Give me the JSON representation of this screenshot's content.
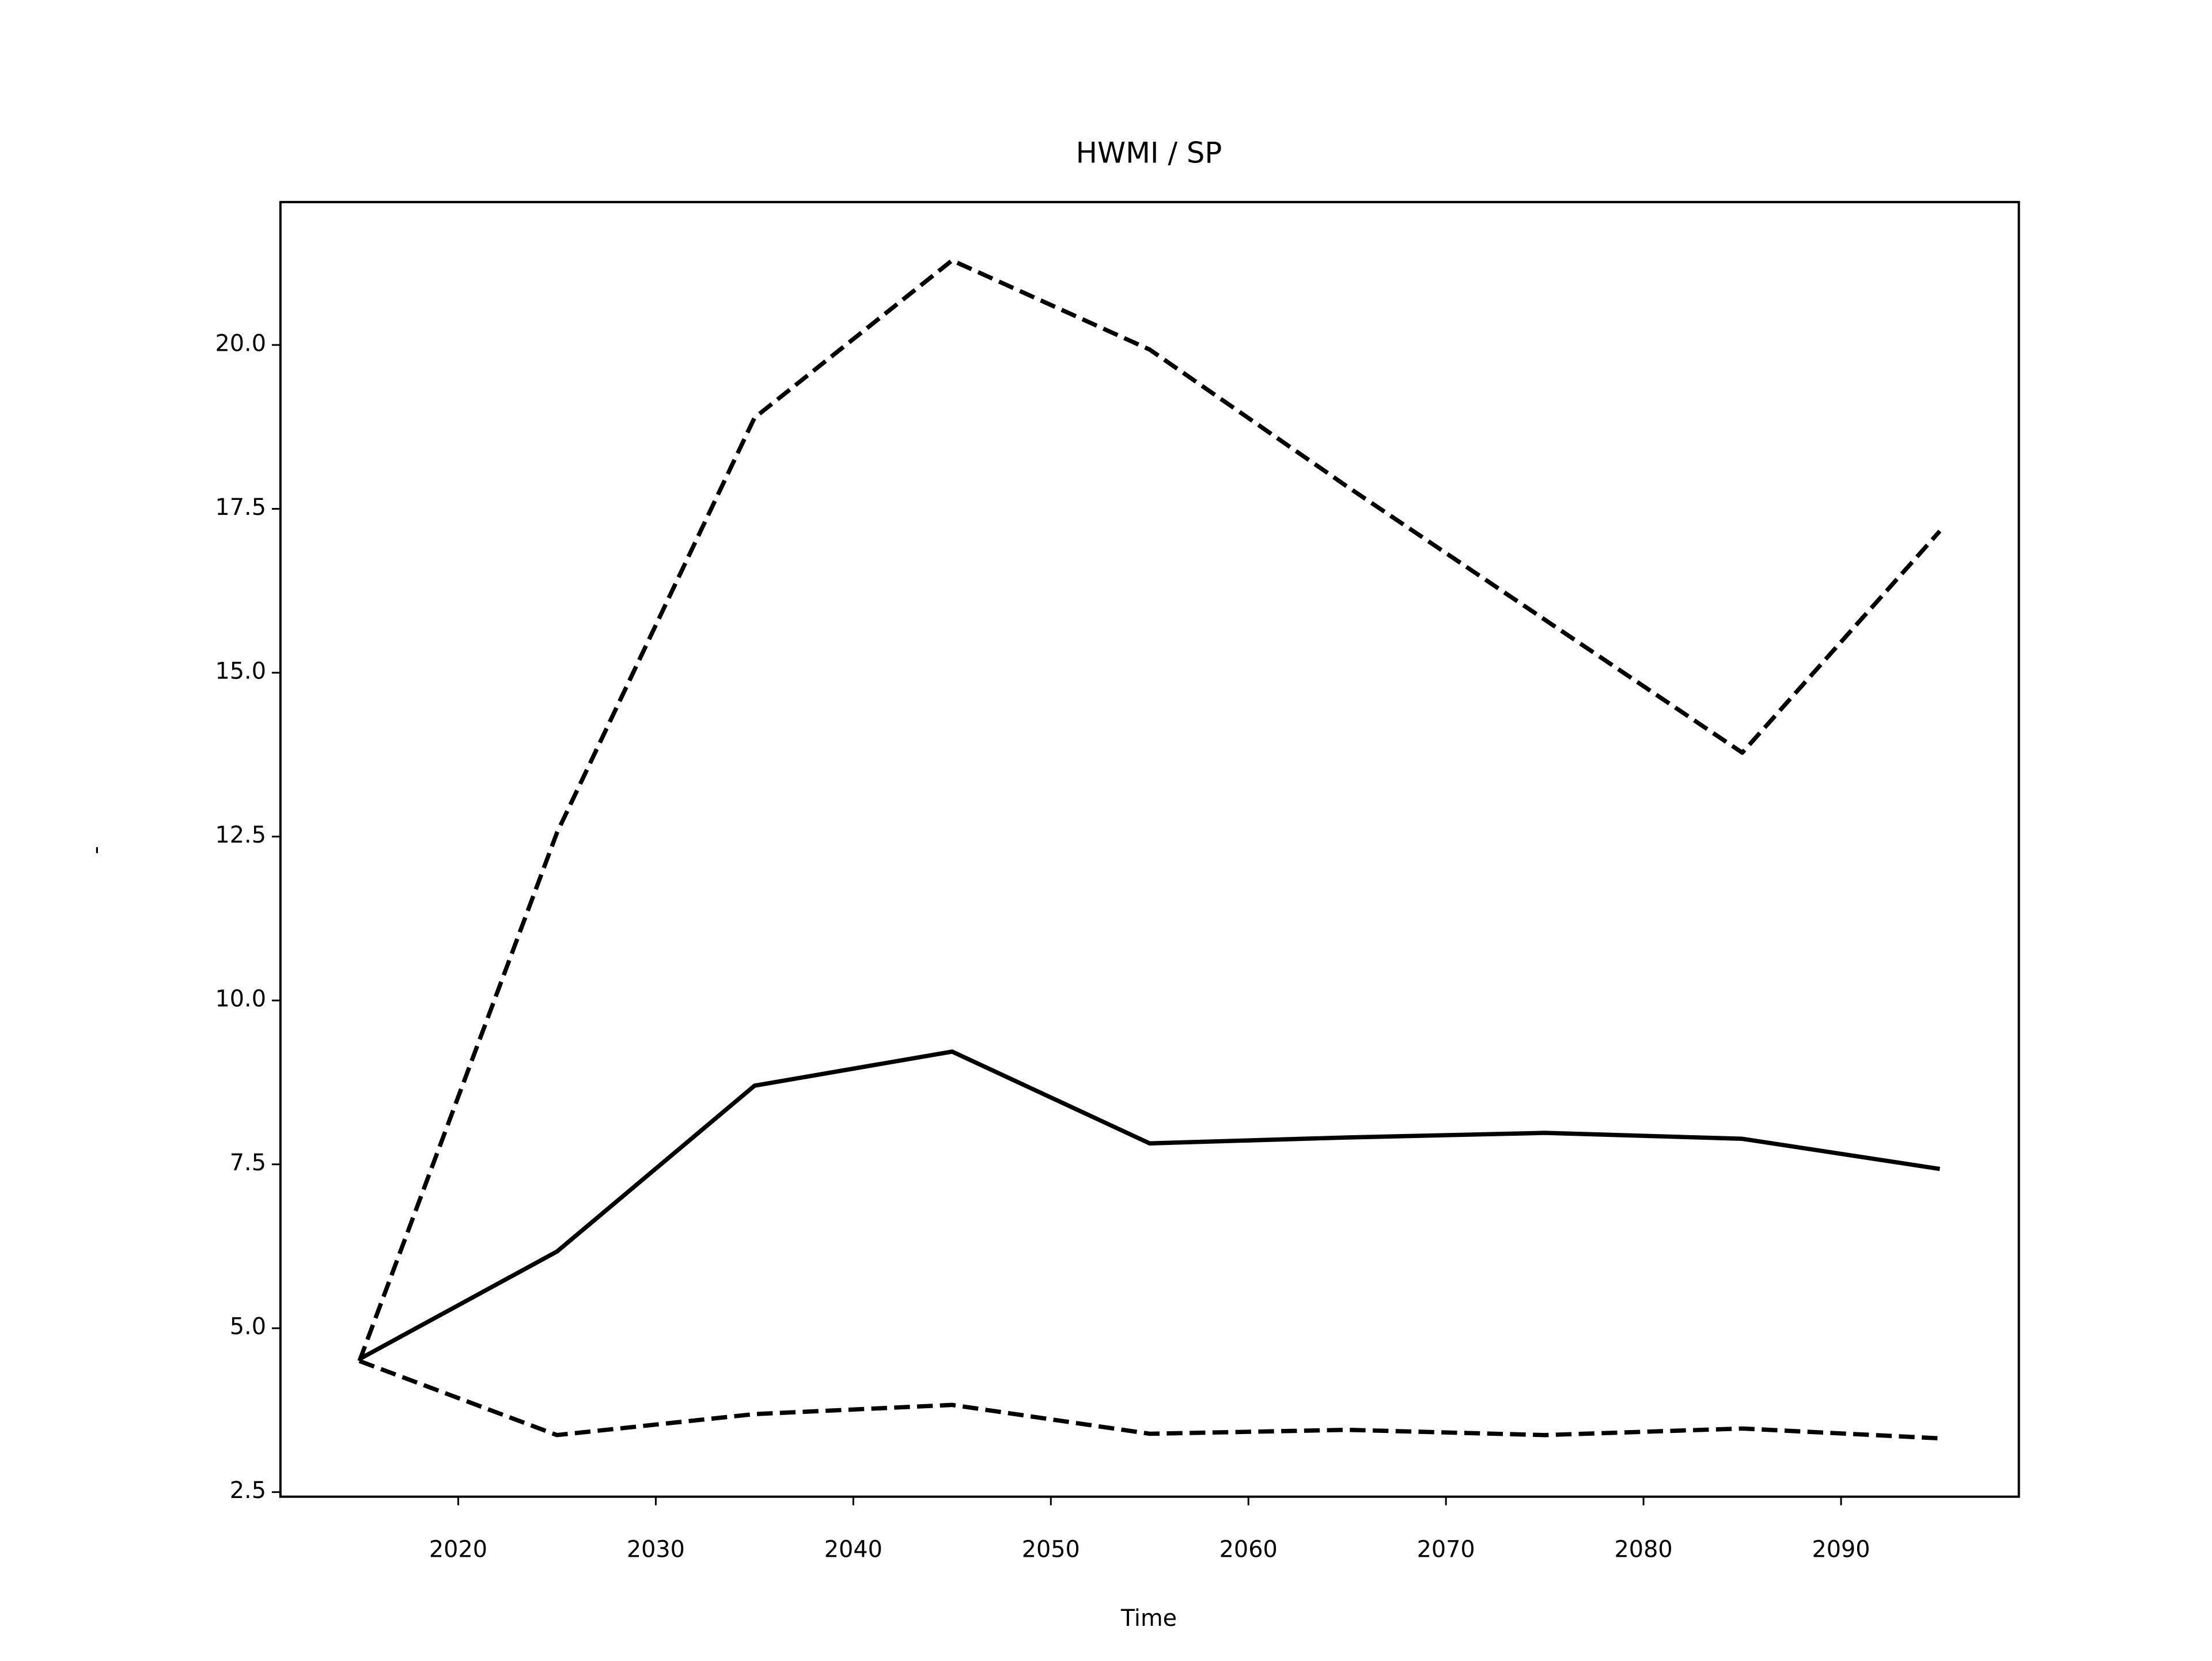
{
  "chart_data": {
    "type": "line",
    "title": "HWMI / SP",
    "xlabel": "Time",
    "ylabel": "-",
    "x": [
      2015,
      2025,
      2035,
      2045,
      2055,
      2065,
      2075,
      2085,
      2095
    ],
    "series": [
      {
        "color": "#000000",
        "style": "solid",
        "values": [
          4.53,
          6.17,
          8.7,
          9.22,
          7.82,
          7.91,
          7.98,
          7.89,
          7.43
        ]
      },
      {
        "color": "#000000",
        "style": "dashed",
        "values": [
          4.5,
          12.56,
          18.89,
          21.29,
          19.93,
          17.84,
          15.81,
          13.78,
          17.16
        ]
      },
      {
        "color": "#000000",
        "style": "dashed",
        "values": [
          4.5,
          3.37,
          3.69,
          3.83,
          3.39,
          3.45,
          3.37,
          3.47,
          3.32
        ]
      }
    ],
    "xlim": [
      2011,
      2099
    ],
    "ylim": [
      2.43,
      22.18
    ],
    "xticks": [
      2020,
      2030,
      2040,
      2050,
      2060,
      2070,
      2080,
      2090
    ],
    "yticks": [
      2.5,
      {
        "value": 5,
        "label": "5.0"
      },
      7.5,
      {
        "value": 10,
        "label": "10.0"
      },
      12.5,
      {
        "value": 15,
        "label": "15.0"
      },
      17.5,
      {
        "value": 20,
        "label": "20.0"
      }
    ],
    "grid": false
  }
}
